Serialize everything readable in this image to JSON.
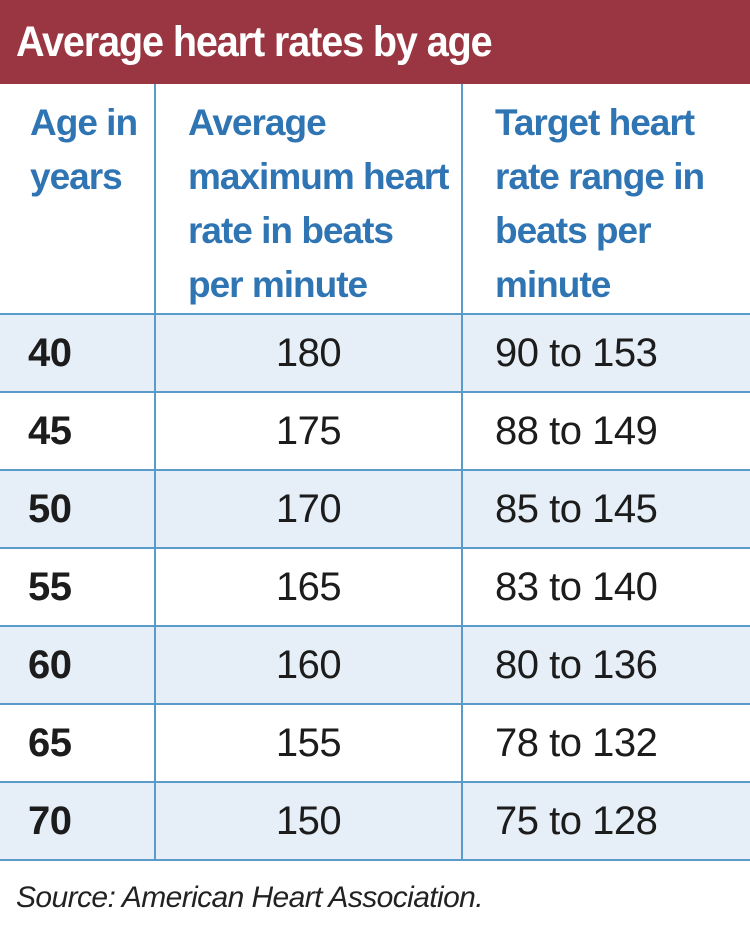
{
  "title": "Average heart rates by age",
  "headers": {
    "age": "Age in years",
    "max": "Average maximum heart rate in beats per minute",
    "range": "Target heart rate range in beats per minute"
  },
  "rows": [
    {
      "age": "40",
      "max": "180",
      "range": "90 to 153"
    },
    {
      "age": "45",
      "max": "175",
      "range": "88 to 149"
    },
    {
      "age": "50",
      "max": "170",
      "range": "85 to 145"
    },
    {
      "age": "55",
      "max": "165",
      "range": "83 to 140"
    },
    {
      "age": "60",
      "max": "160",
      "range": "80 to 136"
    },
    {
      "age": "65",
      "max": "155",
      "range": "78 to 132"
    },
    {
      "age": "70",
      "max": "150",
      "range": "75 to 128"
    }
  ],
  "source": "Source: American Heart Association.",
  "colors": {
    "title_bar": "#9a3641",
    "header_text": "#2f74b3",
    "grid_lines": "#5b9bc9",
    "row_shade": "#e6eef7"
  },
  "chart_data": {
    "type": "table",
    "title": "Average heart rates by age",
    "columns": [
      "Age in years",
      "Average maximum heart rate in beats per minute",
      "Target heart rate range in beats per minute"
    ],
    "rows": [
      [
        "40",
        "180",
        "90 to 153"
      ],
      [
        "45",
        "175",
        "88 to 149"
      ],
      [
        "50",
        "170",
        "85 to 145"
      ],
      [
        "55",
        "165",
        "83 to 140"
      ],
      [
        "60",
        "160",
        "80 to 136"
      ],
      [
        "65",
        "155",
        "78 to 132"
      ],
      [
        "70",
        "150",
        "75 to 128"
      ]
    ],
    "age_years": [
      40,
      45,
      50,
      55,
      60,
      65,
      70
    ],
    "max_heart_rate_bpm": [
      180,
      175,
      170,
      165,
      160,
      155,
      150
    ],
    "target_range_low_bpm": [
      90,
      88,
      85,
      83,
      80,
      78,
      75
    ],
    "target_range_high_bpm": [
      153,
      149,
      145,
      140,
      136,
      132,
      128
    ],
    "source": "Source: American Heart Association."
  }
}
